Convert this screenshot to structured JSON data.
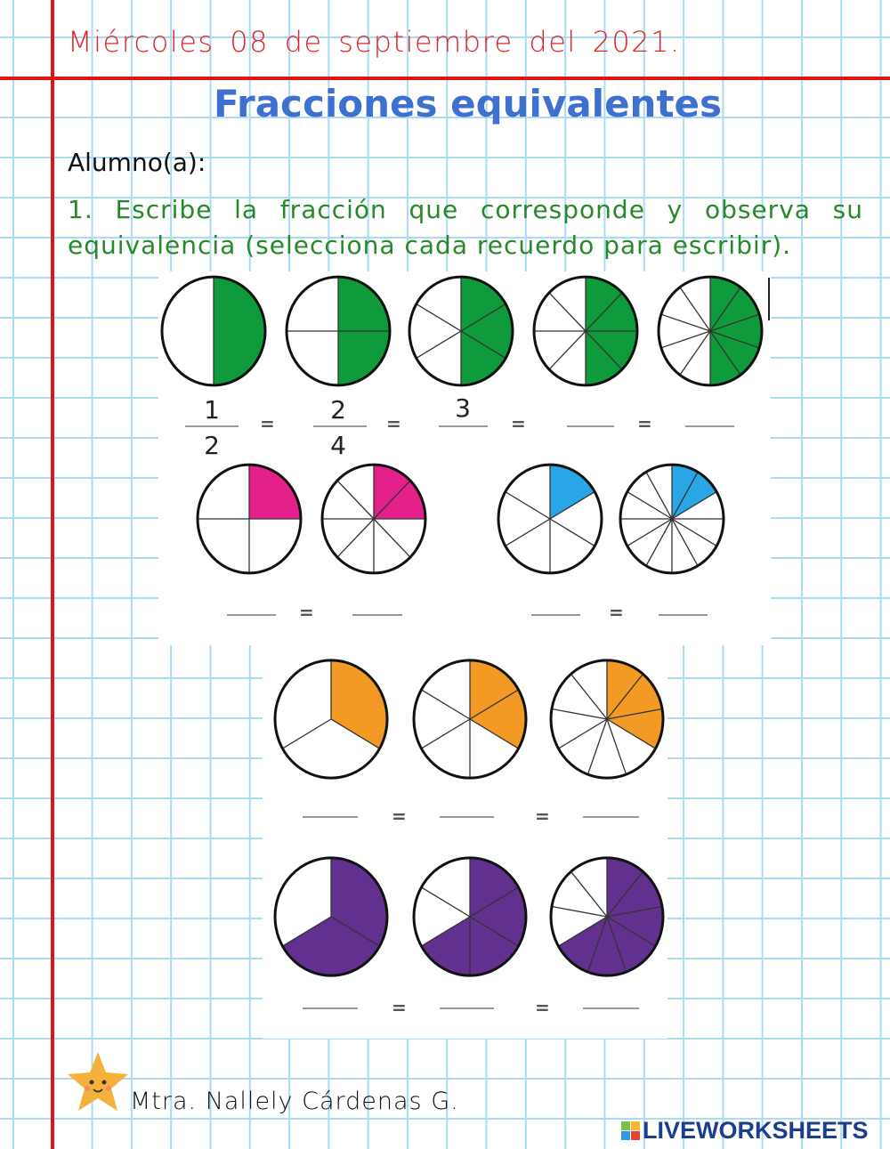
{
  "header": {
    "date": "Miércoles 08 de septiembre del 2021.",
    "title": "Fracciones equivalentes",
    "student_label": "Alumno(a):",
    "instruction": "1. Escribe la fracción que corresponde y observa su equivalencia (selecciona cada recuerdo para escribir)."
  },
  "colors": {
    "grid": "#a9dcf0",
    "margin_red": "#e01414",
    "green": "#0f9a3c",
    "pink": "#e4208a",
    "blue": "#29a6e6",
    "orange": "#f39a24",
    "purple": "#62308f"
  },
  "exercise_1": {
    "pies": [
      {
        "parts": 2,
        "shaded": 1,
        "color": "green"
      },
      {
        "parts": 4,
        "shaded": 2,
        "color": "green"
      },
      {
        "parts": 6,
        "shaded": 3,
        "color": "green"
      },
      {
        "parts": 8,
        "shaded": 4,
        "color": "green"
      },
      {
        "parts": 10,
        "shaded": 5,
        "color": "green"
      }
    ],
    "fractions": [
      {
        "numerator": "1",
        "denominator": "2"
      },
      {
        "numerator": "2",
        "denominator": "4"
      },
      {
        "numerator": "3",
        "denominator": ""
      },
      {
        "numerator": "",
        "denominator": ""
      },
      {
        "numerator": "",
        "denominator": ""
      }
    ],
    "equals": "="
  },
  "exercise_2": {
    "pies": [
      {
        "parts": 4,
        "shaded": 1,
        "color": "pink"
      },
      {
        "parts": 8,
        "shaded": 2,
        "color": "pink"
      },
      {
        "parts": 6,
        "shaded": 1,
        "color": "blue"
      },
      {
        "parts": 12,
        "shaded": 2,
        "color": "blue"
      }
    ]
  },
  "exercise_3": {
    "pies": [
      {
        "parts": 3,
        "shaded": 1,
        "color": "orange"
      },
      {
        "parts": 6,
        "shaded": 2,
        "color": "orange"
      },
      {
        "parts": 9,
        "shaded": 3,
        "color": "orange"
      }
    ]
  },
  "exercise_4": {
    "pies": [
      {
        "parts": 3,
        "shaded": 2,
        "color": "purple"
      },
      {
        "parts": 6,
        "shaded": 4,
        "color": "purple"
      },
      {
        "parts": 9,
        "shaded": 6,
        "color": "purple"
      }
    ]
  },
  "footer": {
    "teacher": "Mtra. Nallely Cárdenas G.",
    "logo": "LIVEWORKSHEETS",
    "logo_mark": [
      "L",
      "I",
      "V",
      "E"
    ]
  }
}
